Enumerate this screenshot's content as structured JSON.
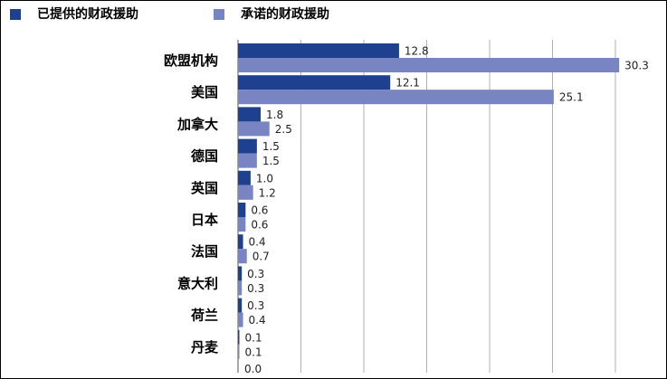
{
  "chart_data": {
    "type": "bar",
    "orientation": "horizontal",
    "title": "",
    "xlabel": "",
    "ylabel": "",
    "categories": [
      "欧盟机构",
      "美国",
      "加拿大",
      "德国",
      "英国",
      "日本",
      "法国",
      "意大利",
      "荷兰",
      "丹麦"
    ],
    "series": [
      {
        "name": "已提供的财政援助",
        "color": "#1f3f8f",
        "values": [
          12.8,
          12.1,
          1.8,
          1.5,
          1.0,
          0.6,
          0.4,
          0.3,
          0.3,
          0.1
        ]
      },
      {
        "name": "承诺的财政援助",
        "color": "#7885c2",
        "values": [
          30.3,
          25.1,
          2.5,
          1.5,
          1.2,
          0.6,
          0.7,
          0.3,
          0.4,
          0.1
        ]
      }
    ],
    "trailing_value_label": "0.0",
    "xlim": [
      0,
      30
    ],
    "grid": "vertical",
    "legend": "top-left"
  }
}
